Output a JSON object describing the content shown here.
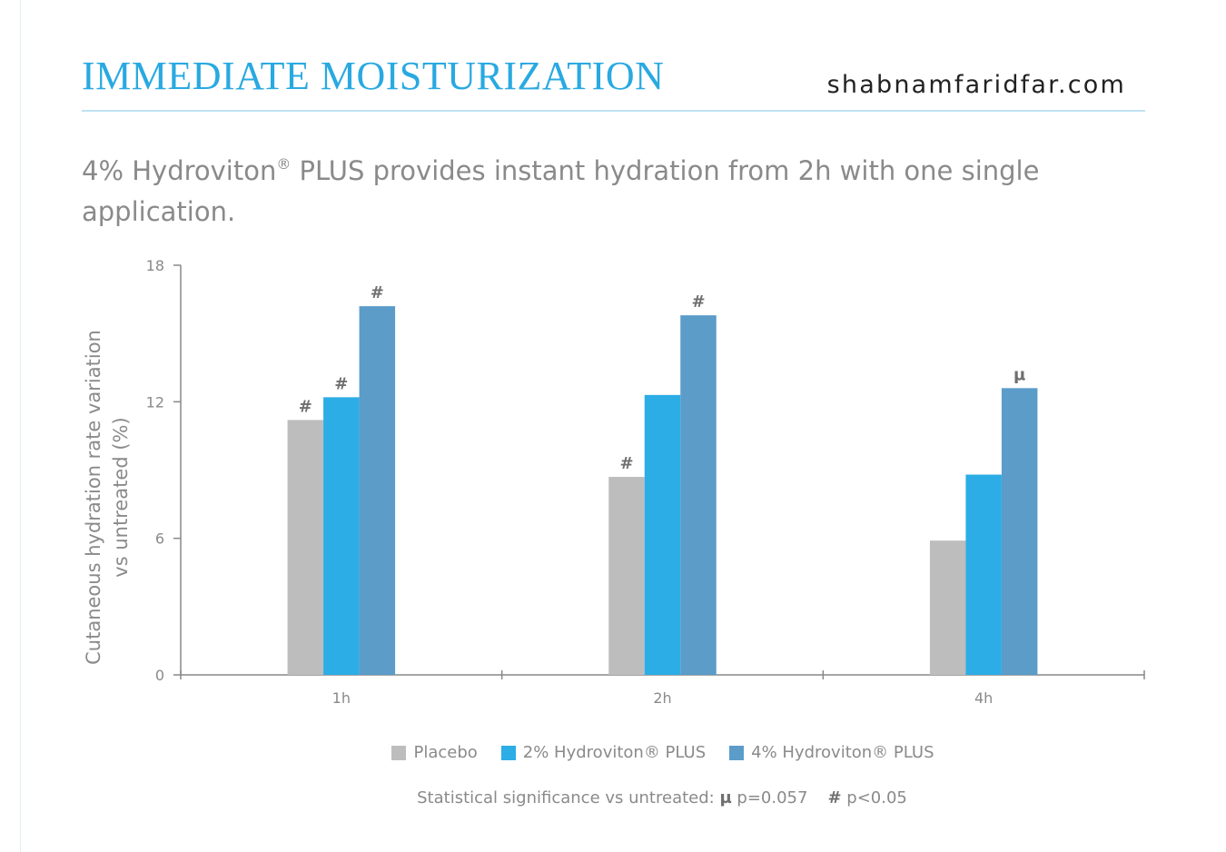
{
  "header": {
    "title": "IMMEDIATE MOISTURIZATION",
    "site": "shabnamfaridfar.com",
    "subtitle_before": "4% Hydroviton",
    "subtitle_mark": "®",
    "subtitle_after": " PLUS provides instant hydration from 2h with one single application."
  },
  "colors": {
    "title": "#29a9e1",
    "placebo": "#bdbdbd",
    "hydro2": "#2cade6",
    "hydro4": "#5b9cc9",
    "axis": "#888888",
    "text": "#8a8a8a"
  },
  "chart_data": {
    "type": "bar",
    "title": "",
    "xlabel": "",
    "ylabel": "Cutaneous hydration rate variation vs untreated (%)",
    "ylabel_lines": [
      "Cutaneous hydration rate variation",
      "vs untreated (%)"
    ],
    "ylim": [
      0,
      18
    ],
    "yticks": [
      0,
      6,
      12,
      18
    ],
    "categories": [
      "1h",
      "2h",
      "4h"
    ],
    "grid": false,
    "legend": "bottom",
    "series": [
      {
        "name": "Placebo",
        "color": "#bdbdbd",
        "values": [
          11.2,
          8.7,
          5.9
        ],
        "markers": [
          "#",
          "#",
          ""
        ]
      },
      {
        "name": "2% Hydroviton® PLUS",
        "color": "#2cade6",
        "values": [
          12.2,
          12.3,
          8.8
        ],
        "markers": [
          "#",
          "",
          ""
        ]
      },
      {
        "name": "4% Hydroviton® PLUS",
        "color": "#5b9cc9",
        "values": [
          16.2,
          15.8,
          12.6
        ],
        "markers": [
          "#",
          "#",
          "µ"
        ]
      }
    ]
  },
  "footnote": {
    "prefix": "Statistical significance vs untreated: ",
    "mu_symbol": "µ",
    "mu_text": " p=0.057",
    "hash_symbol": "#",
    "hash_text": " p<0.05"
  }
}
